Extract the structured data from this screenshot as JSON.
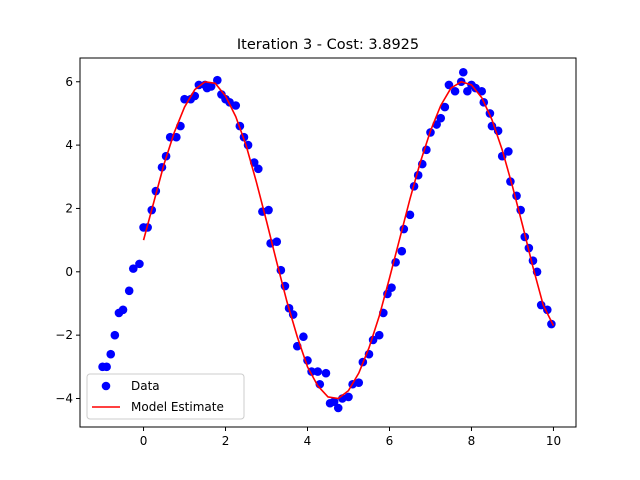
{
  "chart_data": {
    "type": "scatter",
    "title": "Iteration 3 - Cost: 3.8925",
    "xlabel": "",
    "ylabel": "",
    "xlim": [
      -1.55,
      10.55
    ],
    "ylim": [
      -4.9,
      6.75
    ],
    "xticks": [
      0,
      2,
      4,
      6,
      8,
      10
    ],
    "xtick_labels": [
      "0",
      "2",
      "4",
      "6",
      "8",
      "10"
    ],
    "yticks": [
      -4,
      -2,
      0,
      2,
      4,
      6
    ],
    "ytick_labels": [
      "−4",
      "−2",
      "0",
      "2",
      "4",
      "6"
    ],
    "grid": false,
    "legend": {
      "position": "lower-left"
    },
    "series": [
      {
        "name": "Data",
        "kind": "scatter",
        "color": "#0000ff",
        "points": [
          [
            -1.0,
            -3.0
          ],
          [
            -0.9,
            -3.0
          ],
          [
            -0.8,
            -2.6
          ],
          [
            -0.7,
            -2.0
          ],
          [
            -0.6,
            -1.3
          ],
          [
            -0.5,
            -1.2
          ],
          [
            -0.35,
            -0.6
          ],
          [
            -0.25,
            0.1
          ],
          [
            -0.1,
            0.25
          ],
          [
            0.0,
            1.4
          ],
          [
            0.1,
            1.4
          ],
          [
            0.2,
            1.95
          ],
          [
            0.3,
            2.55
          ],
          [
            0.45,
            3.3
          ],
          [
            0.55,
            3.65
          ],
          [
            0.65,
            4.25
          ],
          [
            0.8,
            4.25
          ],
          [
            0.9,
            4.6
          ],
          [
            1.0,
            5.45
          ],
          [
            1.15,
            5.45
          ],
          [
            1.25,
            5.55
          ],
          [
            1.35,
            5.9
          ],
          [
            1.5,
            5.9
          ],
          [
            1.55,
            5.8
          ],
          [
            1.65,
            5.85
          ],
          [
            1.8,
            6.05
          ],
          [
            1.9,
            5.6
          ],
          [
            2.0,
            5.45
          ],
          [
            2.1,
            5.35
          ],
          [
            2.25,
            5.25
          ],
          [
            2.35,
            4.6
          ],
          [
            2.45,
            4.25
          ],
          [
            2.55,
            4.0
          ],
          [
            2.7,
            3.45
          ],
          [
            2.8,
            3.25
          ],
          [
            2.9,
            1.9
          ],
          [
            3.05,
            1.95
          ],
          [
            3.1,
            0.9
          ],
          [
            3.25,
            0.95
          ],
          [
            3.35,
            0.05
          ],
          [
            3.45,
            -0.45
          ],
          [
            3.55,
            -1.15
          ],
          [
            3.65,
            -1.35
          ],
          [
            3.75,
            -2.35
          ],
          [
            3.9,
            -2.05
          ],
          [
            4.0,
            -2.8
          ],
          [
            4.1,
            -3.15
          ],
          [
            4.25,
            -3.15
          ],
          [
            4.3,
            -3.55
          ],
          [
            4.45,
            -3.2
          ],
          [
            4.55,
            -4.15
          ],
          [
            4.65,
            -4.1
          ],
          [
            4.75,
            -4.3
          ],
          [
            4.85,
            -4.0
          ],
          [
            5.0,
            -3.95
          ],
          [
            5.1,
            -3.55
          ],
          [
            5.25,
            -3.5
          ],
          [
            5.35,
            -2.85
          ],
          [
            5.5,
            -2.6
          ],
          [
            5.6,
            -2.15
          ],
          [
            5.75,
            -2.0
          ],
          [
            5.85,
            -1.3
          ],
          [
            5.95,
            -0.7
          ],
          [
            6.05,
            -0.5
          ],
          [
            6.15,
            0.3
          ],
          [
            6.3,
            0.65
          ],
          [
            6.35,
            1.35
          ],
          [
            6.5,
            1.8
          ],
          [
            6.6,
            2.7
          ],
          [
            6.7,
            3.05
          ],
          [
            6.8,
            3.4
          ],
          [
            6.9,
            3.85
          ],
          [
            7.0,
            4.4
          ],
          [
            7.15,
            4.65
          ],
          [
            7.25,
            4.85
          ],
          [
            7.35,
            5.2
          ],
          [
            7.45,
            5.9
          ],
          [
            7.6,
            5.7
          ],
          [
            7.75,
            6.0
          ],
          [
            7.8,
            6.3
          ],
          [
            7.9,
            5.7
          ],
          [
            8.0,
            5.9
          ],
          [
            8.1,
            5.8
          ],
          [
            8.25,
            5.7
          ],
          [
            8.3,
            5.35
          ],
          [
            8.45,
            5.0
          ],
          [
            8.5,
            4.6
          ],
          [
            8.65,
            4.45
          ],
          [
            8.75,
            3.65
          ],
          [
            8.9,
            3.8
          ],
          [
            8.95,
            2.85
          ],
          [
            9.1,
            2.4
          ],
          [
            9.2,
            1.95
          ],
          [
            9.3,
            1.1
          ],
          [
            9.4,
            0.75
          ],
          [
            9.5,
            0.35
          ],
          [
            9.6,
            0.0
          ],
          [
            9.7,
            -1.05
          ],
          [
            9.85,
            -1.2
          ],
          [
            9.95,
            -1.65
          ]
        ]
      },
      {
        "name": "Model Estimate",
        "kind": "line",
        "color": "#ff0000",
        "x_range": [
          0,
          10
        ],
        "points": [
          [
            0.0,
            1.0
          ],
          [
            0.25,
            2.2
          ],
          [
            0.5,
            3.4
          ],
          [
            0.75,
            4.4
          ],
          [
            1.0,
            5.2
          ],
          [
            1.25,
            5.75
          ],
          [
            1.5,
            6.0
          ],
          [
            1.75,
            5.95
          ],
          [
            2.0,
            5.55
          ],
          [
            2.25,
            4.9
          ],
          [
            2.5,
            4.0
          ],
          [
            2.75,
            2.85
          ],
          [
            3.0,
            1.6
          ],
          [
            3.25,
            0.3
          ],
          [
            3.5,
            -0.95
          ],
          [
            3.75,
            -2.05
          ],
          [
            4.0,
            -3.0
          ],
          [
            4.25,
            -3.6
          ],
          [
            4.5,
            -3.95
          ],
          [
            4.75,
            -4.0
          ],
          [
            5.0,
            -3.75
          ],
          [
            5.25,
            -3.2
          ],
          [
            5.5,
            -2.4
          ],
          [
            5.75,
            -1.4
          ],
          [
            6.0,
            -0.2
          ],
          [
            6.25,
            1.05
          ],
          [
            6.5,
            2.3
          ],
          [
            6.75,
            3.45
          ],
          [
            7.0,
            4.45
          ],
          [
            7.25,
            5.25
          ],
          [
            7.5,
            5.8
          ],
          [
            7.75,
            6.0
          ],
          [
            8.0,
            5.9
          ],
          [
            8.25,
            5.5
          ],
          [
            8.5,
            4.8
          ],
          [
            8.75,
            3.85
          ],
          [
            9.0,
            2.7
          ],
          [
            9.25,
            1.45
          ],
          [
            9.5,
            0.15
          ],
          [
            9.75,
            -1.05
          ],
          [
            10.0,
            -1.7
          ]
        ]
      }
    ]
  }
}
